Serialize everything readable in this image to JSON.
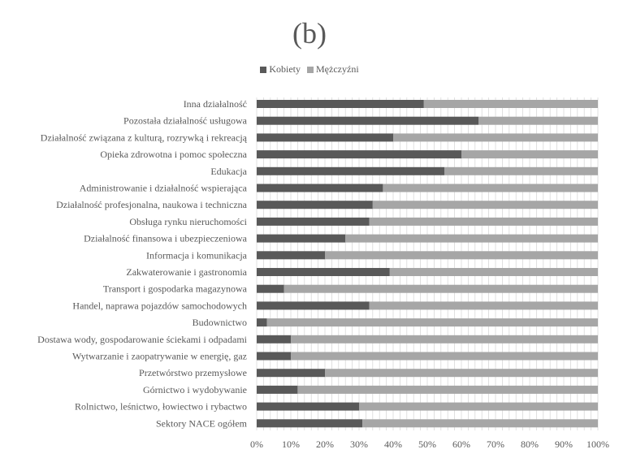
{
  "chart_data": {
    "type": "bar",
    "orientation": "horizontal",
    "stacked": "percent",
    "title": "(b)",
    "legend_position": "top",
    "categories": [
      "Inna działalność",
      "Pozostała działalność usługowa",
      "Działalność związana z kulturą, rozrywką i rekreacją",
      "Opieka zdrowotna i pomoc społeczna",
      "Edukacja",
      "Administrowanie i działalność wspierająca",
      "Działalność profesjonalna, naukowa i techniczna",
      "Obsługa rynku nieruchomości",
      "Działalność finansowa i ubezpieczeniowa",
      "Informacja i komunikacja",
      "Zakwaterowanie i gastronomia",
      "Transport i gospodarka magazynowa",
      "Handel, naprawa pojazdów samochodowych",
      "Budownictwo",
      "Dostawa wody, gospodarowanie ściekami i odpadami",
      "Wytwarzanie i zaopatrywanie w energię, gaz",
      "Przetwórstwo przemysłowe",
      "Górnictwo i wydobywanie",
      "Rolnictwo, leśnictwo, łowiectwo i rybactwo",
      "Sektory NACE ogółem"
    ],
    "series": [
      {
        "name": "Kobiety",
        "color": "#595959",
        "values": [
          49,
          65,
          40,
          60,
          55,
          37,
          34,
          33,
          26,
          20,
          39,
          8,
          33,
          3,
          10,
          10,
          20,
          12,
          30,
          31
        ]
      },
      {
        "name": "Mężczyźni",
        "color": "#a6a6a6",
        "values": [
          51,
          35,
          60,
          40,
          45,
          63,
          66,
          67,
          74,
          80,
          61,
          92,
          67,
          97,
          90,
          90,
          80,
          88,
          70,
          69
        ]
      }
    ],
    "x_ticks": [
      "0%",
      "10%",
      "20%",
      "30%",
      "40%",
      "50%",
      "60%",
      "70%",
      "80%",
      "90%",
      "100%"
    ],
    "xlim": [
      0,
      100
    ],
    "grid": true
  }
}
